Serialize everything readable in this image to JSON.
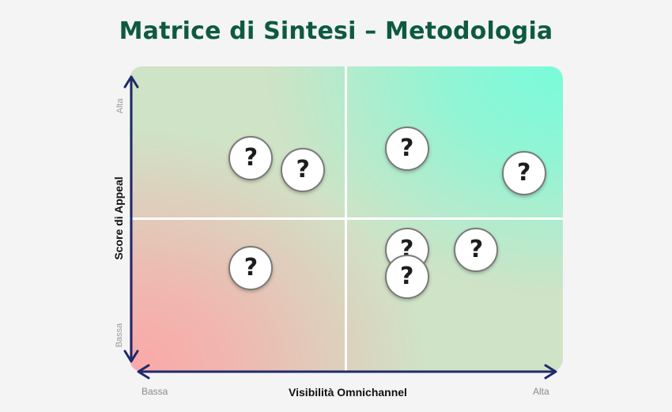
{
  "title": "Matrice di Sintesi –  Metodologia",
  "y_axis": {
    "label": "Score di Appeal",
    "high": "Alta",
    "low": "Bassa"
  },
  "x_axis": {
    "label": "Visibilità Omnichannel",
    "high": "Alta",
    "low": "Bassa"
  },
  "colors": {
    "title": "#0d5a40",
    "axis": "#1f2a6b",
    "low_zone": "#fba8a8",
    "high_zone": "#78fcda"
  },
  "marker_icon": "?",
  "markers": [
    {
      "id": "m1",
      "x": 0.28,
      "y": 0.7
    },
    {
      "id": "m2",
      "x": 0.4,
      "y": 0.66
    },
    {
      "id": "m3",
      "x": 0.64,
      "y": 0.73
    },
    {
      "id": "m4",
      "x": 0.91,
      "y": 0.65
    },
    {
      "id": "m5",
      "x": 0.28,
      "y": 0.34
    },
    {
      "id": "m6",
      "x": 0.64,
      "y": 0.4
    },
    {
      "id": "m7",
      "x": 0.8,
      "y": 0.4
    },
    {
      "id": "m8",
      "x": 0.64,
      "y": 0.31
    }
  ]
}
